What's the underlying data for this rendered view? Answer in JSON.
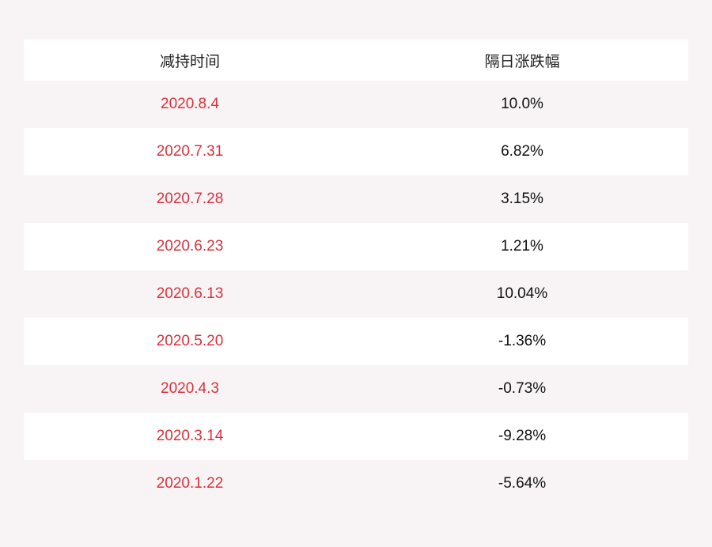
{
  "table": {
    "headers": [
      "减持时间",
      "隔日涨跌幅"
    ],
    "rows": [
      {
        "date": "2020.8.4",
        "change": "10.0%"
      },
      {
        "date": "2020.7.31",
        "change": "6.82%"
      },
      {
        "date": "2020.7.28",
        "change": "3.15%"
      },
      {
        "date": "2020.6.23",
        "change": "1.21%"
      },
      {
        "date": "2020.6.13",
        "change": "10.04%"
      },
      {
        "date": "2020.5.20",
        "change": "-1.36%"
      },
      {
        "date": "2020.4.3",
        "change": "-0.73%"
      },
      {
        "date": "2020.3.14",
        "change": "-9.28%"
      },
      {
        "date": "2020.1.22",
        "change": "-5.64%"
      }
    ]
  },
  "colors": {
    "date_text": "#d8323c",
    "background": "#f8f4f5",
    "stripe": "#ffffff"
  }
}
